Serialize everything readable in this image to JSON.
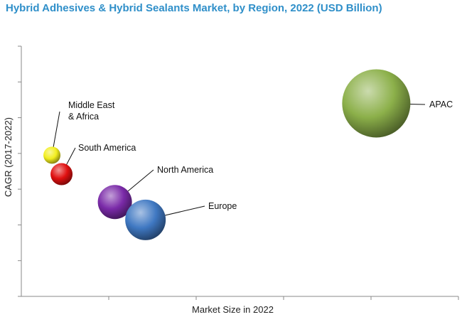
{
  "chart_data": {
    "type": "bubble",
    "title": "Hybrid Adhesives & Hybrid Sealants Market, by Region, 2022 (USD Billion)",
    "xlabel": "Market Size in 2022",
    "ylabel": "CAGR (2017-2022)",
    "xlim": [
      0,
      5
    ],
    "ylim": [
      0,
      7
    ],
    "x_tick_labels_shown": false,
    "y_tick_labels_shown": false,
    "grid": false,
    "legend": "none",
    "points": [
      {
        "label_lines": [
          "APAC"
        ],
        "x": 4.06,
        "y": 5.4,
        "size": 4.8,
        "color": "#8cb04a"
      },
      {
        "label_lines": [
          "Middle East",
          "& Africa"
        ],
        "x": 0.35,
        "y": 3.95,
        "size": 1.2,
        "color": "#f2ee1e"
      },
      {
        "label_lines": [
          "South America"
        ],
        "x": 0.46,
        "y": 3.42,
        "size": 1.55,
        "color": "#e01010"
      },
      {
        "label_lines": [
          "North America"
        ],
        "x": 1.07,
        "y": 2.64,
        "size": 2.4,
        "color": "#7a2aa8"
      },
      {
        "label_lines": [
          "Europe"
        ],
        "x": 1.42,
        "y": 2.14,
        "size": 2.85,
        "color": "#3f78c2"
      }
    ]
  }
}
